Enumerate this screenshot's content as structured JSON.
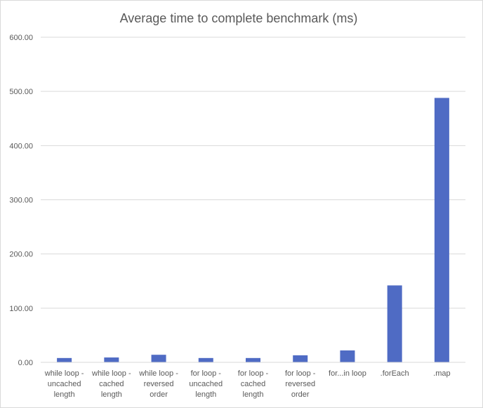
{
  "chart_data": {
    "type": "bar",
    "title": "Average time to complete benchmark (ms)",
    "xlabel": "",
    "ylabel": "",
    "ylim": [
      0,
      600
    ],
    "y_ticks": [
      "0.00",
      "100.00",
      "200.00",
      "300.00",
      "400.00",
      "500.00",
      "600.00"
    ],
    "grid": "horizontal",
    "legend": "none",
    "bar_color": "#4f6bc4",
    "categories": [
      [
        "while loop -",
        "uncached",
        "length"
      ],
      [
        "while loop -",
        "cached",
        "length"
      ],
      [
        "while loop -",
        "reversed",
        "order"
      ],
      [
        "for loop -",
        "uncached",
        "length"
      ],
      [
        "for loop -",
        "cached",
        "length"
      ],
      [
        "for loop -",
        "reversed",
        "order"
      ],
      [
        "for...in loop"
      ],
      [
        ".forEach"
      ],
      [
        ".map"
      ]
    ],
    "values": [
      8,
      9,
      14,
      8,
      8,
      13,
      22,
      142,
      488
    ]
  }
}
